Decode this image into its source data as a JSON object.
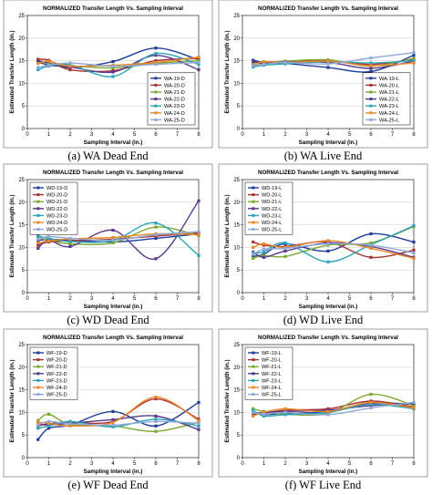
{
  "chart_data": [
    {
      "type": "line",
      "title": "NORMALIZED Transfer Length Vs. Sampling Interval",
      "xlabel": "Sampling Interval (in.)",
      "ylabel": "Estimated Transfer Length (in.)",
      "caption": "(a)  WA Dead End",
      "xlim": [
        0,
        8
      ],
      "ylim": [
        0,
        25
      ],
      "xticks": [
        0,
        1,
        2,
        3,
        4,
        5,
        6,
        7,
        8
      ],
      "yticks": [
        0,
        5,
        10,
        15,
        20,
        25
      ],
      "grid": true,
      "legend_position": "bottom-right",
      "x": [
        0.5,
        1,
        2,
        4,
        6,
        8
      ],
      "series": [
        {
          "name": "WA-19-D",
          "color": "#1f3d99",
          "values": [
            15.0,
            14.5,
            13.5,
            14.8,
            17.8,
            15.2
          ]
        },
        {
          "name": "WA-20-D",
          "color": "#a83232",
          "values": [
            15.3,
            15.1,
            13.0,
            12.8,
            15.0,
            15.5
          ]
        },
        {
          "name": "WA-21-D",
          "color": "#7da832",
          "values": [
            14.6,
            14.2,
            13.9,
            13.4,
            14.4,
            15.0
          ]
        },
        {
          "name": "WA-22-D",
          "color": "#5a3a8a",
          "values": [
            14.8,
            14.0,
            13.6,
            12.5,
            16.2,
            13.0
          ]
        },
        {
          "name": "WA-23-D",
          "color": "#2ca3b8",
          "values": [
            13.0,
            13.8,
            14.1,
            11.5,
            16.6,
            14.2
          ]
        },
        {
          "name": "WA-24-D",
          "color": "#e8882a",
          "values": [
            14.4,
            14.9,
            13.8,
            14.0,
            14.6,
            15.8
          ]
        },
        {
          "name": "WA-25-D",
          "color": "#8fa8d6",
          "values": [
            13.5,
            14.0,
            14.5,
            13.8,
            14.2,
            14.6
          ]
        }
      ]
    },
    {
      "type": "line",
      "title": "NORMALIZED Transfer Length Vs. Sampling Interval",
      "xlabel": "Sampling Interval (in.)",
      "ylabel": "Estimated Transfer Length (in.)",
      "caption": "(b) WA Live End",
      "xlim": [
        0,
        8
      ],
      "ylim": [
        0,
        25
      ],
      "xticks": [
        0,
        1,
        2,
        3,
        4,
        5,
        6,
        7,
        8
      ],
      "yticks": [
        0,
        5,
        10,
        15,
        20,
        25
      ],
      "grid": true,
      "legend_position": "bottom-right",
      "x": [
        0.5,
        1,
        2,
        4,
        6,
        8
      ],
      "series": [
        {
          "name": "WA-19-L",
          "color": "#1f3d99",
          "values": [
            15.1,
            14.6,
            14.4,
            13.5,
            12.6,
            16.2
          ]
        },
        {
          "name": "WA-20-L",
          "color": "#a83232",
          "values": [
            14.6,
            14.7,
            14.8,
            15.0,
            14.2,
            15.2
          ]
        },
        {
          "name": "WA-21-L",
          "color": "#7da832",
          "values": [
            14.2,
            14.5,
            14.9,
            15.2,
            13.8,
            15.5
          ]
        },
        {
          "name": "WA-22-L",
          "color": "#5a3a8a",
          "values": [
            14.9,
            14.4,
            14.7,
            14.6,
            13.3,
            14.9
          ]
        },
        {
          "name": "WA-23-L",
          "color": "#2ca3b8",
          "values": [
            13.6,
            14.0,
            14.3,
            14.8,
            14.5,
            15.0
          ]
        },
        {
          "name": "WA-24-L",
          "color": "#e8882a",
          "values": [
            14.0,
            14.8,
            14.6,
            14.9,
            13.9,
            14.5
          ]
        },
        {
          "name": "WA-25-L",
          "color": "#8fa8d6",
          "values": [
            13.9,
            14.2,
            14.6,
            14.3,
            15.6,
            16.8
          ]
        }
      ]
    },
    {
      "type": "line",
      "title": "NORMALIZED Transfer Length Vs. Sampling Interval",
      "xlabel": "Sampling Interval (in.)",
      "ylabel": "Estimated Transfer Length (in.)",
      "caption": "(c) WD Dead End",
      "xlim": [
        0,
        8
      ],
      "ylim": [
        0,
        25
      ],
      "xticks": [
        0,
        1,
        2,
        3,
        4,
        5,
        6,
        7,
        8
      ],
      "yticks": [
        0,
        5,
        10,
        15,
        20,
        25
      ],
      "grid": true,
      "legend_position": "top-left",
      "x": [
        0.5,
        1,
        2,
        4,
        6,
        8
      ],
      "series": [
        {
          "name": "WD-19-D",
          "color": "#1f3d99",
          "values": [
            11.5,
            11.8,
            11.6,
            11.2,
            12.0,
            13.0
          ]
        },
        {
          "name": "WD-20-D",
          "color": "#a83232",
          "values": [
            10.5,
            11.2,
            11.5,
            11.8,
            12.5,
            13.2
          ]
        },
        {
          "name": "WD-21-D",
          "color": "#7da832",
          "values": [
            12.2,
            11.6,
            10.8,
            11.0,
            14.5,
            12.6
          ]
        },
        {
          "name": "WD-22-D",
          "color": "#5a3a8a",
          "values": [
            9.8,
            11.6,
            10.2,
            13.8,
            7.5,
            20.3
          ]
        },
        {
          "name": "WD-23-D",
          "color": "#2ca3b8",
          "values": [
            12.5,
            12.0,
            11.3,
            11.5,
            15.4,
            8.2
          ]
        },
        {
          "name": "WD-24-D",
          "color": "#e8882a",
          "values": [
            11.0,
            11.4,
            11.9,
            12.2,
            13.0,
            12.8
          ]
        },
        {
          "name": "WD-25-D",
          "color": "#8fa8d6",
          "values": [
            11.8,
            12.4,
            12.0,
            11.6,
            12.8,
            13.5
          ]
        }
      ]
    },
    {
      "type": "line",
      "title": "NORMALIZED Transfer Length Vs. Sampling Interval",
      "xlabel": "Sampling Interval (in.)",
      "ylabel": "Estimated Transfer Length (in.)",
      "caption": "(d) WD Live End",
      "xlim": [
        0,
        8
      ],
      "ylim": [
        0,
        25
      ],
      "xticks": [
        0,
        1,
        2,
        3,
        4,
        5,
        6,
        7,
        8
      ],
      "yticks": [
        0,
        5,
        10,
        15,
        20,
        25
      ],
      "grid": true,
      "legend_position": "top-left",
      "x": [
        0.5,
        1,
        2,
        4,
        6,
        8
      ],
      "series": [
        {
          "name": "WD-19-L",
          "color": "#1f3d99",
          "values": [
            8.0,
            8.5,
            10.8,
            9.2,
            13.0,
            11.2
          ]
        },
        {
          "name": "WD-20-L",
          "color": "#a83232",
          "values": [
            11.2,
            10.5,
            10.2,
            11.2,
            7.8,
            9.4
          ]
        },
        {
          "name": "WD-21-L",
          "color": "#7da832",
          "values": [
            7.6,
            8.2,
            8.0,
            10.5,
            11.0,
            14.6
          ]
        },
        {
          "name": "WD-22-L",
          "color": "#5a3a8a",
          "values": [
            9.0,
            7.8,
            9.2,
            11.0,
            10.2,
            7.8
          ]
        },
        {
          "name": "WD-23-L",
          "color": "#2ca3b8",
          "values": [
            8.8,
            9.0,
            11.0,
            6.8,
            10.6,
            14.8
          ]
        },
        {
          "name": "WD-24-L",
          "color": "#e8882a",
          "values": [
            10.0,
            10.8,
            10.0,
            11.5,
            9.8,
            7.6
          ]
        },
        {
          "name": "WD-25-L",
          "color": "#8fa8d6",
          "values": [
            8.5,
            9.6,
            9.8,
            10.8,
            10.5,
            8.8
          ]
        }
      ]
    },
    {
      "type": "line",
      "title": "NORMALIZED Transfer Length Vs. Sampling Interval",
      "xlabel": "Sampling Interval (in.)",
      "ylabel": "Estimated Transfer Length (in.)",
      "caption": "(e) WF Dead End",
      "xlim": [
        0,
        8
      ],
      "ylim": [
        0,
        25
      ],
      "xticks": [
        0,
        1,
        2,
        3,
        4,
        5,
        6,
        7,
        8
      ],
      "yticks": [
        0,
        5,
        10,
        15,
        20,
        25
      ],
      "grid": true,
      "legend_position": "top-left",
      "x": [
        0.5,
        1,
        2,
        4,
        6,
        8
      ],
      "series": [
        {
          "name": "WF-19-D",
          "color": "#1f3d99",
          "values": [
            4.0,
            6.5,
            7.2,
            10.2,
            7.0,
            12.2
          ]
        },
        {
          "name": "WF-20-D",
          "color": "#a83232",
          "values": [
            7.0,
            7.5,
            7.8,
            8.0,
            13.0,
            8.5
          ]
        },
        {
          "name": "WF-21-D",
          "color": "#7da832",
          "values": [
            8.2,
            9.6,
            7.4,
            7.0,
            5.8,
            7.8
          ]
        },
        {
          "name": "WF-22-D",
          "color": "#5a3a8a",
          "values": [
            7.5,
            7.2,
            7.6,
            8.4,
            9.2,
            6.2
          ]
        },
        {
          "name": "WF-23-D",
          "color": "#2ca3b8",
          "values": [
            6.5,
            7.0,
            8.0,
            6.8,
            8.5,
            7.0
          ]
        },
        {
          "name": "WF-24-D",
          "color": "#e8882a",
          "values": [
            7.8,
            7.6,
            7.0,
            7.8,
            13.4,
            8.2
          ]
        },
        {
          "name": "WF-25-D",
          "color": "#8fa8d6",
          "values": [
            7.2,
            8.0,
            7.5,
            7.2,
            8.0,
            7.6
          ]
        }
      ]
    },
    {
      "type": "line",
      "title": "NORMALIZED Transfer Length Vs. Sampling Interval",
      "xlabel": "Sampling Interval (in.)",
      "ylabel": "Estimated Transfer Length (in.)",
      "caption": "(f)  WF Live End",
      "xlim": [
        0,
        8
      ],
      "ylim": [
        0,
        25
      ],
      "xticks": [
        0,
        1,
        2,
        3,
        4,
        5,
        6,
        7,
        8
      ],
      "yticks": [
        0,
        5,
        10,
        15,
        20,
        25
      ],
      "grid": true,
      "legend_position": "top-left",
      "x": [
        0.5,
        1,
        2,
        4,
        6,
        8
      ],
      "series": [
        {
          "name": "WF-19-L",
          "color": "#1f3d99",
          "values": [
            10.2,
            9.5,
            9.8,
            10.2,
            12.0,
            11.8
          ]
        },
        {
          "name": "WF-20-L",
          "color": "#a83232",
          "values": [
            9.5,
            9.8,
            10.5,
            10.8,
            12.5,
            11.2
          ]
        },
        {
          "name": "WF-21-L",
          "color": "#7da832",
          "values": [
            10.8,
            10.2,
            9.6,
            9.8,
            14.0,
            11.5
          ]
        },
        {
          "name": "WF-22-L",
          "color": "#5a3a8a",
          "values": [
            9.8,
            10.0,
            10.2,
            10.5,
            11.5,
            12.0
          ]
        },
        {
          "name": "WF-23-L",
          "color": "#2ca3b8",
          "values": [
            10.5,
            9.2,
            9.5,
            10.0,
            11.8,
            10.8
          ]
        },
        {
          "name": "WF-24-L",
          "color": "#e8882a",
          "values": [
            9.2,
            10.0,
            10.8,
            10.2,
            12.2,
            11.0
          ]
        },
        {
          "name": "WF-25-L",
          "color": "#8fa8d6",
          "values": [
            10.0,
            9.6,
            10.0,
            9.5,
            11.0,
            12.2
          ]
        }
      ]
    }
  ]
}
